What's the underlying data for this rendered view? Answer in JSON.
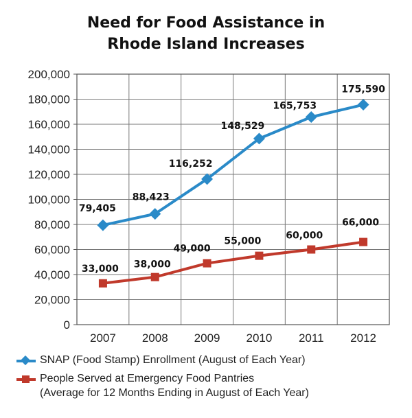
{
  "chart_data": {
    "type": "line",
    "title_lines": [
      "Need for Food Assistance in",
      "Rhode Island Increases"
    ],
    "categories": [
      "2007",
      "2008",
      "2009",
      "2010",
      "2011",
      "2012"
    ],
    "ylim": [
      0,
      200000
    ],
    "yticks": [
      "0",
      "20,000",
      "40,000",
      "60,000",
      "80,000",
      "100,000",
      "120,000",
      "140,000",
      "160,000",
      "180,000",
      "200,000"
    ],
    "grid": true,
    "legend_position": "bottom",
    "series": [
      {
        "name": "SNAP (Food Stamp) Enrollment (August of Each Year)",
        "legend_lines": [
          "SNAP (Food Stamp) Enrollment (August of Each Year)"
        ],
        "values": [
          79405,
          88423,
          116252,
          148529,
          165753,
          175590
        ],
        "labels": [
          "79,405",
          "88,423",
          "116,252",
          "148,529",
          "165,753",
          "175,590"
        ],
        "color": "#2a8ac8",
        "marker": "diamond"
      },
      {
        "name": "People Served at Emergency Food Pantries (Average for 12 Months Ending in August of Each Year)",
        "legend_lines": [
          "People Served at Emergency Food Pantries",
          "(Average for 12 Months Ending in August of Each Year)"
        ],
        "values": [
          33000,
          38000,
          49000,
          55000,
          60000,
          66000
        ],
        "labels": [
          "33,000",
          "38,000",
          "49,000",
          "55,000",
          "60,000",
          "66,000"
        ],
        "color": "#c0392b",
        "marker": "square"
      }
    ]
  }
}
